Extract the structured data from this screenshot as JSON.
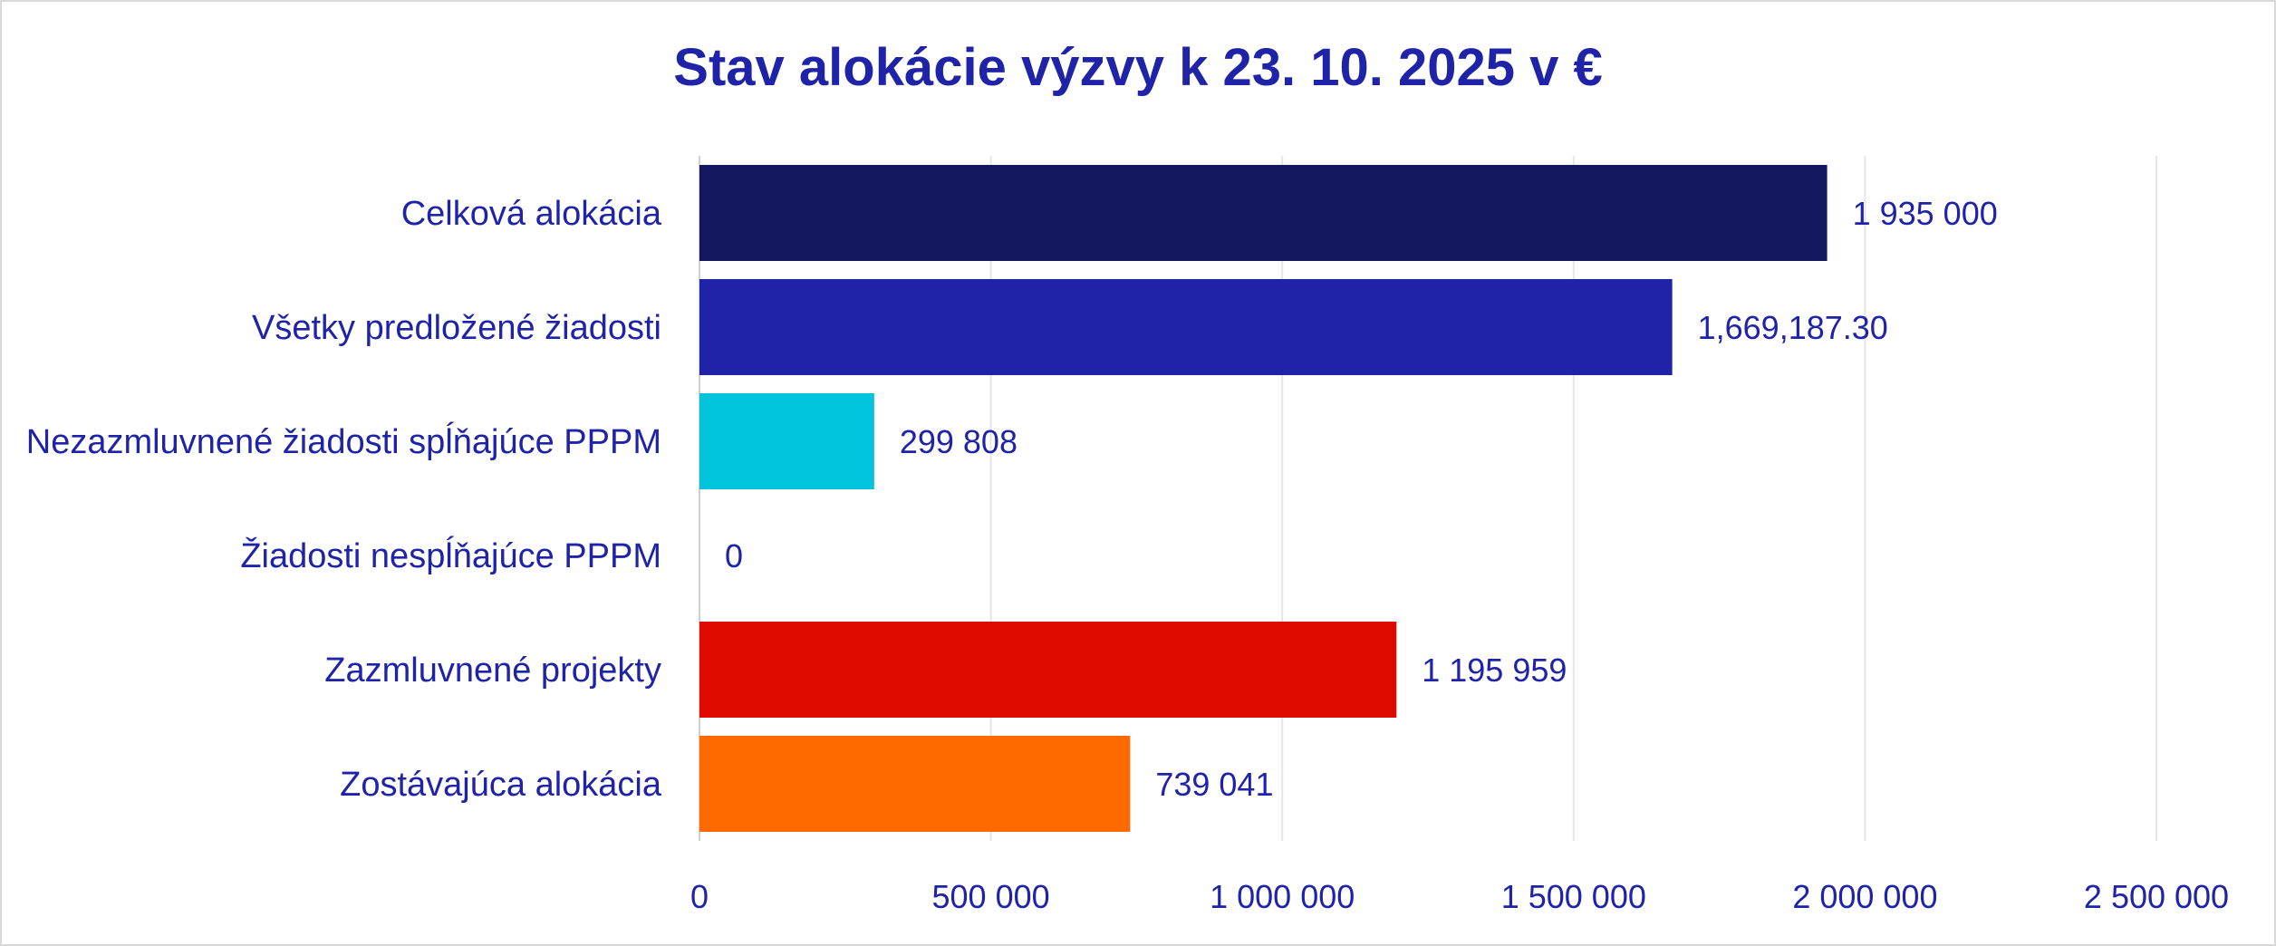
{
  "chart_data": {
    "type": "bar",
    "orientation": "horizontal",
    "title": "Stav alokácie výzvy k 23. 10. 2025 v €",
    "categories": [
      "Celková alokácia",
      "Všetky predložené žiadosti",
      "Nezazmluvnené žiadosti spĺňajúce PPPM",
      "Žiadosti nespĺňajúce PPPM",
      "Zazmluvnené projekty",
      "Zostávajúca alokácia"
    ],
    "values": [
      1935000,
      1669187.3,
      299808,
      0,
      1195959,
      739041
    ],
    "data_labels": [
      "1 935 000",
      "1,669,187.30",
      "299 808",
      "0",
      "1 195 959",
      "739 041"
    ],
    "colors": [
      "#12175e",
      "#1f23a8",
      "#00c4dc",
      "#00c4dc",
      "#e00a00",
      "#ff6a00"
    ],
    "xlim": [
      0,
      2500000
    ],
    "x_ticks": [
      0,
      500000,
      1000000,
      1500000,
      2000000,
      2500000
    ],
    "x_tick_labels": [
      "0",
      "500 000",
      "1 000 000",
      "1 500 000",
      "2 000 000",
      "2 500 000"
    ],
    "grid": "vertical",
    "legend": "none",
    "text_color": "#1f23a8",
    "grid_color": "#e6e6e6"
  }
}
